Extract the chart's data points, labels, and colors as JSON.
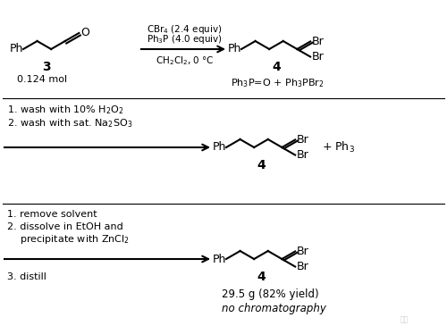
{
  "fig_w": 5.0,
  "fig_h": 3.65,
  "dpi": 100,
  "bg": "#ffffff",
  "row1": {
    "reagent_above1": "CBr$_4$ (2.4 equiv)",
    "reagent_above2": "Ph$_3$P (4.0 equiv)",
    "reagent_below": "CH$_2$Cl$_2$, 0 °C",
    "reactant_num": "3",
    "reactant_sub": "0.124 mol",
    "product_num": "4",
    "byproduct": "Ph$_3$P=O + Ph$_3$PBr$_2$"
  },
  "row2": {
    "cond1": "1. wash with 10% H$_2$O$_2$",
    "cond2": "2. wash with sat. Na$_2$SO$_3$",
    "product_num": "4",
    "right_text": "+ Ph$_3$"
  },
  "row3": {
    "cond1": "1. remove solvent",
    "cond2": "2. dissolve in EtOH and",
    "cond3": "    precipitate with ZnCl$_2$",
    "cond4": "3. distill",
    "product_num": "4",
    "yield_text": "29.5 g (82% yield)",
    "no_chrom": "no chromatography"
  }
}
